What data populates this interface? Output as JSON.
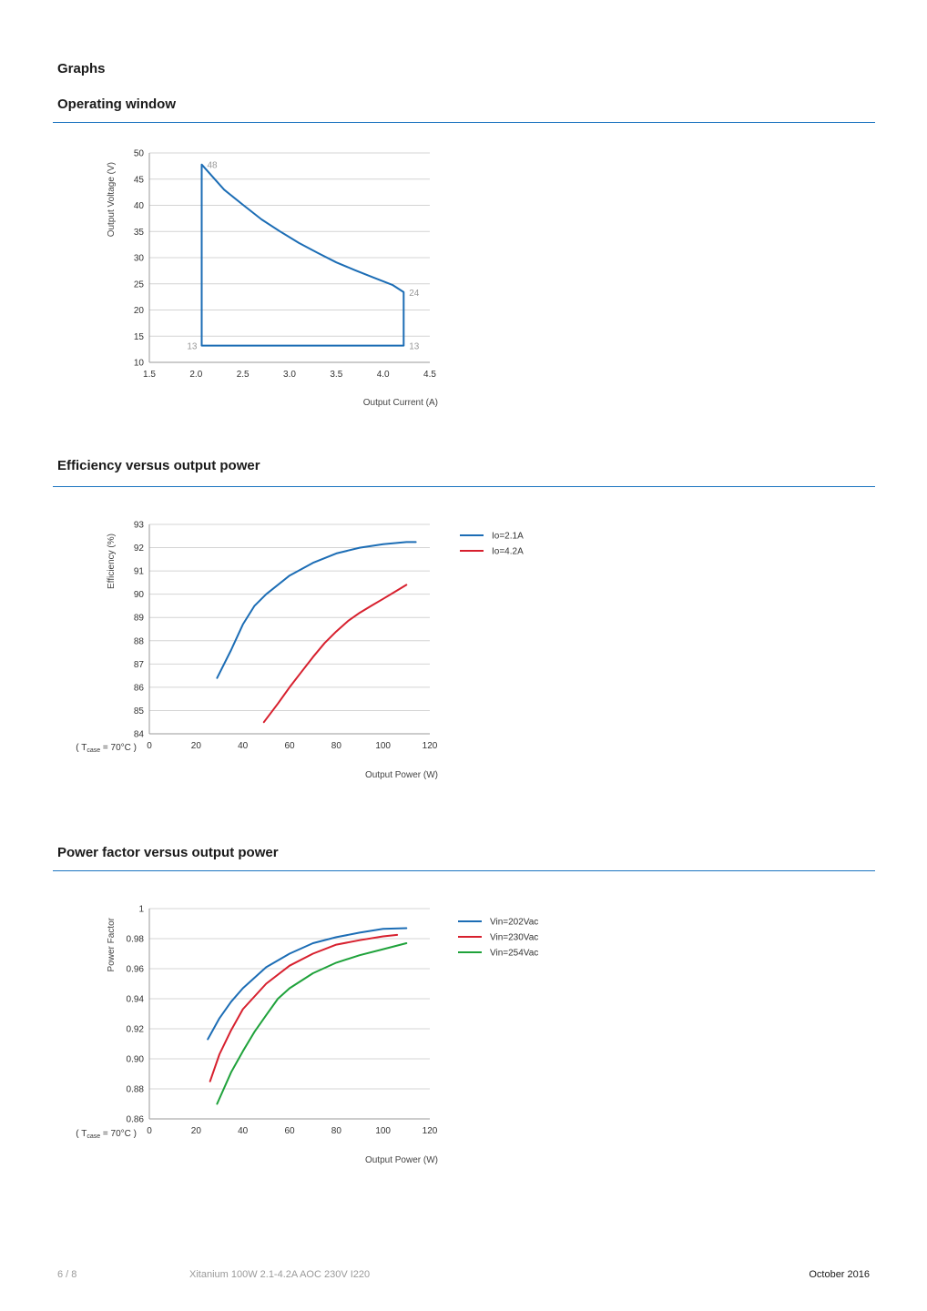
{
  "page": {
    "heading": "Graphs",
    "footer": {
      "page_number": "6 / 8",
      "product": "Xitanium 100W 2.1-4.2A AOC 230V I220",
      "date": "October 2016"
    },
    "accent_color": "#1c74c0"
  },
  "sections": [
    {
      "title": "Operating window"
    },
    {
      "title": "Efficiency versus output power"
    },
    {
      "title": "Power factor versus output power"
    }
  ],
  "chart_data": [
    {
      "type": "line",
      "title": "Operating window",
      "xlabel": "Output Current (A)",
      "ylabel": "Output Voltage (V)",
      "xlim": [
        1.5,
        4.5
      ],
      "ylim": [
        10,
        50
      ],
      "x_ticks": [
        "1.5",
        "2.0",
        "2.5",
        "3.0",
        "3.5",
        "4.0",
        "4.5"
      ],
      "y_ticks": [
        "10",
        "15",
        "20",
        "25",
        "30",
        "35",
        "40",
        "45",
        "50"
      ],
      "grid": true,
      "series": [
        {
          "color": "#1c6db5",
          "x": [
            2.06,
            2.06,
            2.3,
            2.5,
            2.7,
            2.9,
            3.1,
            3.3,
            3.5,
            3.7,
            3.9,
            4.1,
            4.22,
            4.22,
            2.06
          ],
          "y": [
            13.2,
            47.8,
            43.0,
            40.1,
            37.3,
            35.0,
            32.8,
            30.9,
            29.1,
            27.6,
            26.2,
            24.8,
            23.4,
            13.2,
            13.2
          ]
        }
      ],
      "annotations": [
        {
          "text": "48",
          "x": 2.06,
          "y": 47.8
        },
        {
          "text": "24",
          "x": 4.22,
          "y": 23.4
        },
        {
          "text": "13",
          "x": 2.06,
          "y": 13.2,
          "side": "left"
        },
        {
          "text": "13",
          "x": 4.22,
          "y": 13.2
        }
      ]
    },
    {
      "type": "line",
      "title": "Efficiency versus output power",
      "xlabel": "Output Power (W)",
      "ylabel": "Efficiency (%)",
      "condition_label": "( T",
      "condition_sub": "case",
      "condition_rest": " = 70°C )",
      "xlim": [
        0,
        120
      ],
      "ylim": [
        84,
        93
      ],
      "x_ticks": [
        "0",
        "20",
        "40",
        "60",
        "80",
        "100",
        "120"
      ],
      "y_ticks": [
        "84",
        "85",
        "86",
        "87",
        "88",
        "89",
        "90",
        "91",
        "92",
        "93"
      ],
      "grid": true,
      "legend_position": "right",
      "series": [
        {
          "name": "Io=2.1A",
          "color": "#1c6db5",
          "x": [
            29,
            35,
            40,
            45,
            50,
            60,
            70,
            80,
            90,
            100,
            110,
            114
          ],
          "y": [
            86.4,
            87.6,
            88.7,
            89.5,
            90.0,
            90.8,
            91.35,
            91.75,
            92.0,
            92.15,
            92.24,
            92.24
          ]
        },
        {
          "name": "Io=4.2A",
          "color": "#d7202e",
          "x": [
            49,
            55,
            60,
            65,
            70,
            75,
            80,
            85,
            90,
            95,
            100,
            105,
            110
          ],
          "y": [
            84.5,
            85.3,
            86.0,
            86.65,
            87.3,
            87.9,
            88.4,
            88.85,
            89.2,
            89.5,
            89.8,
            90.1,
            90.4
          ]
        }
      ]
    },
    {
      "type": "line",
      "title": "Power factor versus output power",
      "xlabel": "Output Power (W)",
      "ylabel": "Power Factor",
      "condition_label": "( T",
      "condition_sub": "case",
      "condition_rest": " = 70°C )",
      "xlim": [
        0,
        120
      ],
      "ylim": [
        0.86,
        1.0
      ],
      "x_ticks": [
        "0",
        "20",
        "40",
        "60",
        "80",
        "100",
        "120"
      ],
      "y_ticks": [
        "0.86",
        "0.88",
        "0.90",
        "0.92",
        "0.94",
        "0.96",
        "0.98",
        "1"
      ],
      "grid": true,
      "legend_position": "right",
      "series": [
        {
          "name": "Vin=202Vac",
          "color": "#1c6db5",
          "x": [
            25,
            30,
            35,
            40,
            50,
            60,
            70,
            80,
            90,
            100,
            110
          ],
          "y": [
            0.913,
            0.927,
            0.938,
            0.947,
            0.961,
            0.97,
            0.977,
            0.981,
            0.984,
            0.9865,
            0.987
          ]
        },
        {
          "name": "Vin=230Vac",
          "color": "#d7202e",
          "x": [
            26,
            30,
            35,
            40,
            50,
            60,
            70,
            80,
            90,
            100,
            106
          ],
          "y": [
            0.885,
            0.903,
            0.919,
            0.933,
            0.95,
            0.962,
            0.97,
            0.976,
            0.979,
            0.9815,
            0.9825
          ]
        },
        {
          "name": "Vin=254Vac",
          "color": "#1fa23b",
          "x": [
            29,
            35,
            40,
            45,
            50,
            55,
            60,
            70,
            80,
            90,
            100,
            110
          ],
          "y": [
            0.87,
            0.891,
            0.905,
            0.918,
            0.929,
            0.94,
            0.947,
            0.957,
            0.964,
            0.969,
            0.973,
            0.977
          ]
        }
      ]
    }
  ]
}
